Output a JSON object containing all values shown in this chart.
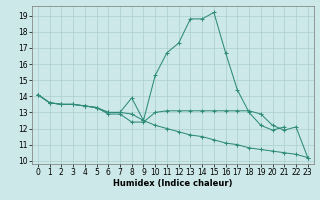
{
  "line1_x": [
    0,
    1,
    2,
    3,
    4,
    5,
    6,
    7,
    8,
    9,
    10,
    11,
    12,
    13,
    14,
    15,
    16,
    17,
    18,
    19,
    20,
    21,
    22
  ],
  "line1_y": [
    14.1,
    13.6,
    13.5,
    13.5,
    13.4,
    13.3,
    13.0,
    13.0,
    13.9,
    12.5,
    15.3,
    16.7,
    17.3,
    18.8,
    18.8,
    19.2,
    16.7,
    14.4,
    13.0,
    12.2,
    11.9,
    12.1,
    null
  ],
  "line2_x": [
    0,
    1,
    2,
    3,
    4,
    5,
    6,
    7,
    8,
    9,
    10,
    11,
    12,
    13,
    14,
    15,
    16,
    17,
    18,
    19,
    20,
    21,
    22,
    23
  ],
  "line2_y": [
    14.1,
    13.6,
    13.5,
    13.5,
    13.4,
    13.3,
    12.9,
    12.9,
    12.4,
    12.4,
    13.0,
    13.1,
    13.1,
    13.1,
    13.1,
    13.1,
    13.1,
    13.1,
    13.1,
    12.9,
    12.2,
    11.9,
    12.1,
    10.2
  ],
  "line3_x": [
    0,
    1,
    2,
    3,
    4,
    5,
    6,
    7,
    8,
    9,
    10,
    11,
    12,
    13,
    14,
    15,
    16,
    17,
    18,
    19,
    20,
    21,
    22,
    23
  ],
  "line3_y": [
    14.1,
    13.6,
    13.5,
    13.5,
    13.4,
    13.3,
    13.0,
    13.0,
    12.9,
    12.5,
    12.2,
    12.0,
    11.8,
    11.6,
    11.5,
    11.3,
    11.1,
    11.0,
    10.8,
    10.7,
    10.6,
    10.5,
    10.4,
    10.2
  ],
  "color": "#2e8b7a",
  "bg_color": "#cde8e8",
  "grid_color": "#aacfcf",
  "xlabel": "Humidex (Indice chaleur)",
  "xlabel_fontsize": 6.0,
  "tick_fontsize": 5.5,
  "xlim": [
    -0.5,
    23.5
  ],
  "ylim": [
    9.8,
    19.6
  ],
  "yticks": [
    10,
    11,
    12,
    13,
    14,
    15,
    16,
    17,
    18,
    19
  ],
  "xticks": [
    0,
    1,
    2,
    3,
    4,
    5,
    6,
    7,
    8,
    9,
    10,
    11,
    12,
    13,
    14,
    15,
    16,
    17,
    18,
    19,
    20,
    21,
    22,
    23
  ]
}
